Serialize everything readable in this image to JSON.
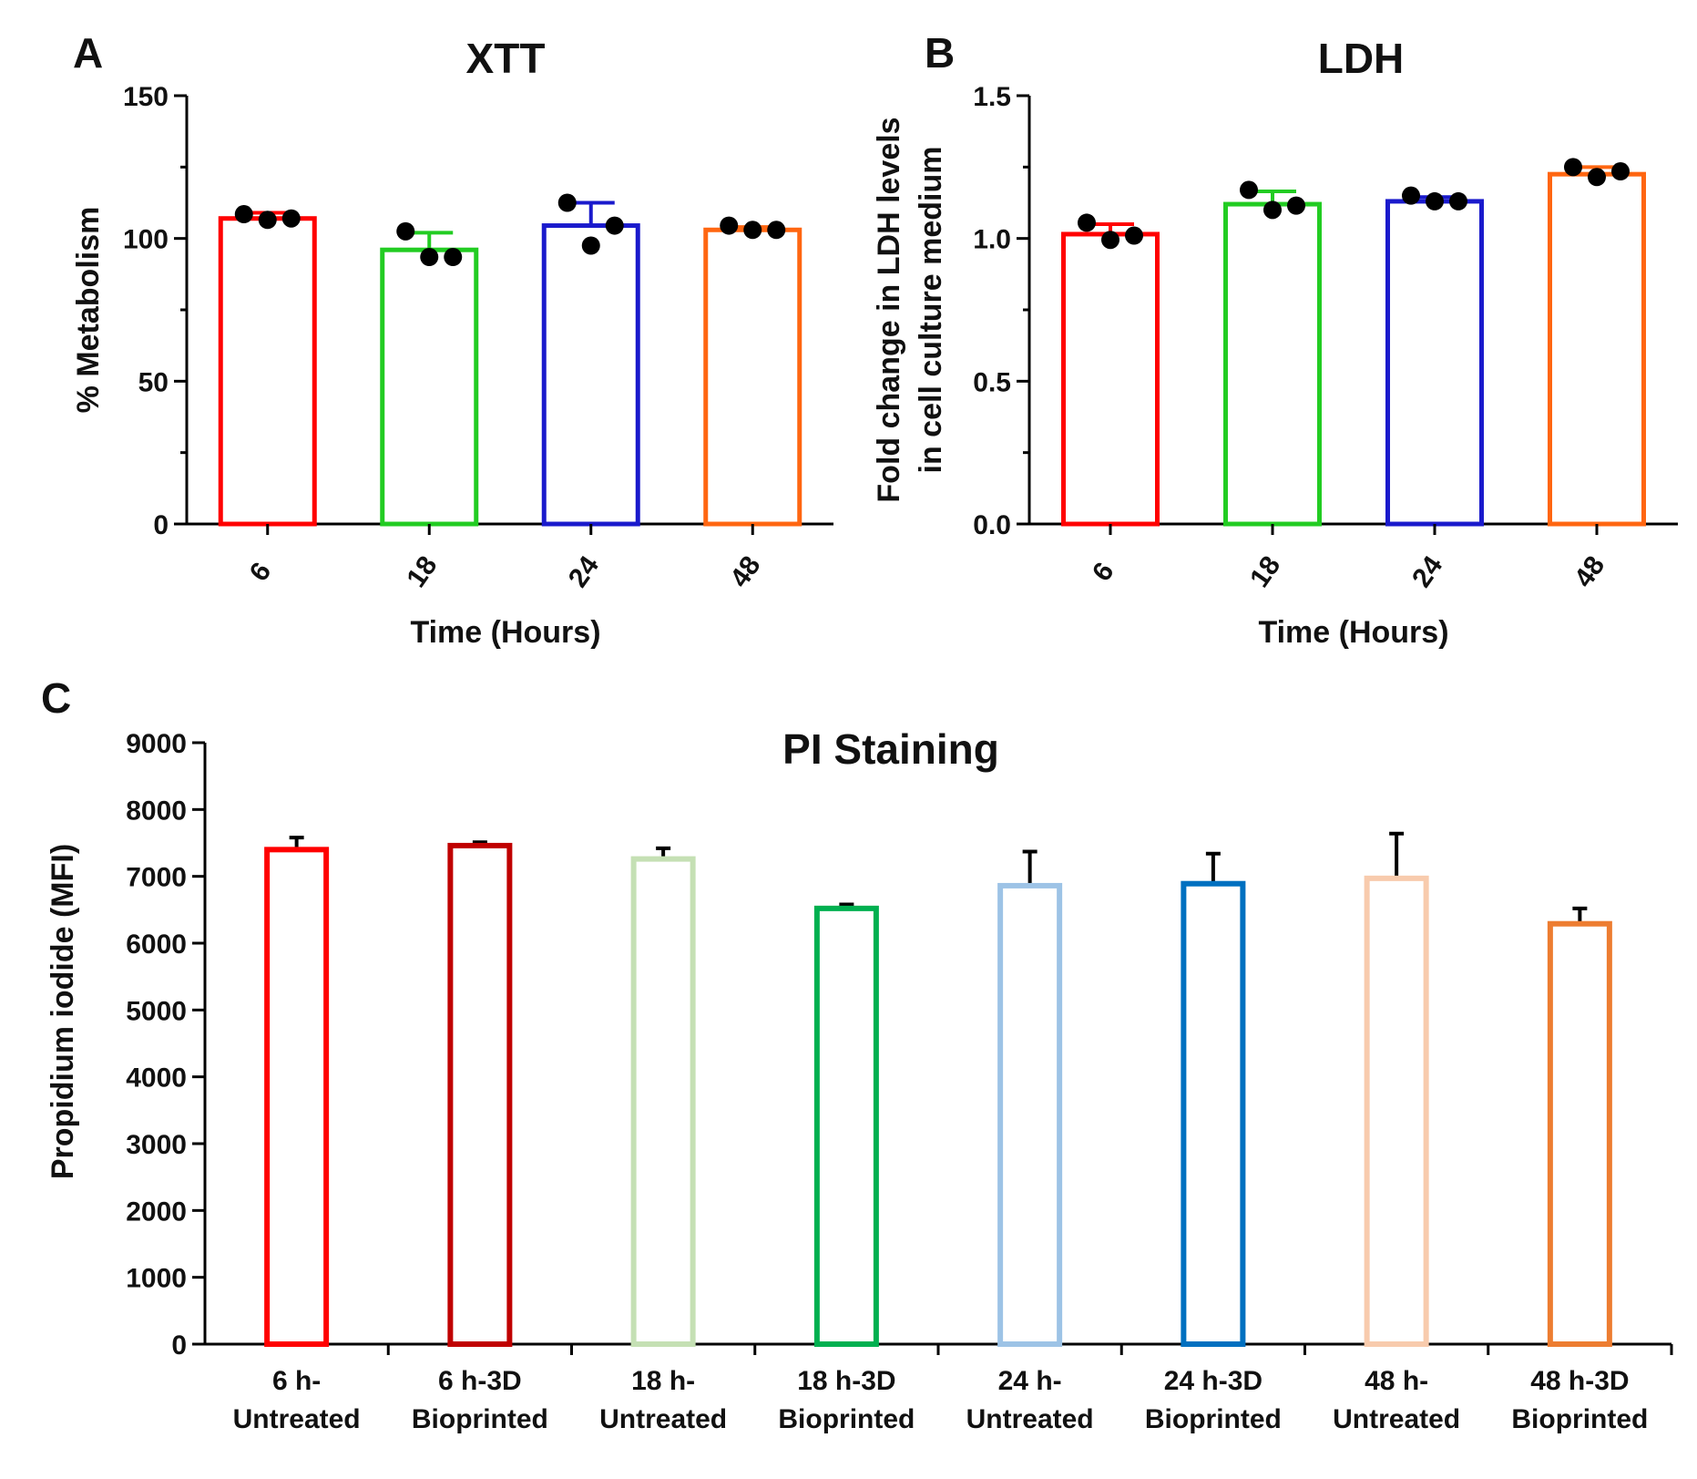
{
  "chart_data": [
    {
      "panel": "A",
      "type": "bar",
      "title": "XTT",
      "xlabel": "Time (Hours)",
      "ylabel": "% Metabolism",
      "categories": [
        "6",
        "18",
        "24",
        "48"
      ],
      "values": [
        107,
        96,
        104.5,
        103
      ],
      "error_upper": [
        109,
        102,
        112.5,
        104
      ],
      "points": [
        [
          108.5,
          106.5,
          107
        ],
        [
          102.5,
          93.5,
          93.5
        ],
        [
          112.5,
          97.5,
          104.5
        ],
        [
          104.5,
          103,
          103
        ]
      ],
      "colors": [
        "#ff0000",
        "#22cc22",
        "#1a1acc",
        "#ff6611"
      ],
      "ylim": [
        0,
        150
      ],
      "yticks": [
        0,
        50,
        100,
        150
      ],
      "ytick_labels": [
        "0",
        "50",
        "100",
        "150"
      ]
    },
    {
      "panel": "B",
      "type": "bar",
      "title": "LDH",
      "xlabel": "Time (Hours)",
      "ylabel": "Fold change in LDH levels in cell culture medium",
      "ylabel_lines": [
        "Fold change in LDH levels",
        "in cell culture medium"
      ],
      "categories": [
        "6",
        "18",
        "24",
        "48"
      ],
      "values": [
        1.015,
        1.12,
        1.13,
        1.225
      ],
      "error_upper": [
        1.05,
        1.165,
        1.145,
        1.25
      ],
      "points": [
        [
          1.055,
          0.995,
          1.01
        ],
        [
          1.17,
          1.1,
          1.115
        ],
        [
          1.15,
          1.13,
          1.13
        ],
        [
          1.25,
          1.215,
          1.235
        ]
      ],
      "colors": [
        "#ff0000",
        "#22cc22",
        "#1a1acc",
        "#ff6611"
      ],
      "ylim": [
        0,
        1.5
      ],
      "yticks": [
        0,
        0.5,
        1.0,
        1.5
      ],
      "ytick_labels": [
        "0.0",
        "0.5",
        "1.0",
        "1.5"
      ]
    },
    {
      "panel": "C",
      "type": "bar",
      "title": "PI Staining",
      "xlabel": "",
      "ylabel": "Propidium iodide (MFI)",
      "categories": [
        [
          "6 h-",
          "Untreated"
        ],
        [
          "6 h-3D",
          "Bioprinted"
        ],
        [
          "18 h-",
          "Untreated"
        ],
        [
          "18 h-3D",
          "Bioprinted"
        ],
        [
          "24 h-",
          "Untreated"
        ],
        [
          "24 h-3D",
          "Bioprinted"
        ],
        [
          "48 h-",
          "Untreated"
        ],
        [
          "48 h-3D",
          "Bioprinted"
        ]
      ],
      "values": [
        7400,
        7460,
        7260,
        6520,
        6860,
        6890,
        6970,
        6290
      ],
      "error_upper": [
        7580,
        7510,
        7420,
        6580,
        7370,
        7340,
        7640,
        6520
      ],
      "colors": [
        "#ff0000",
        "#c00000",
        "#c5e0b4",
        "#00b050",
        "#9dc3e6",
        "#0070c0",
        "#f8cbad",
        "#ed7d31"
      ],
      "ylim": [
        0,
        9000
      ],
      "yticks": [
        0,
        1000,
        2000,
        3000,
        4000,
        5000,
        6000,
        7000,
        8000,
        9000
      ],
      "ytick_labels": [
        "0",
        "1000",
        "2000",
        "3000",
        "4000",
        "5000",
        "6000",
        "7000",
        "8000",
        "9000"
      ]
    }
  ]
}
